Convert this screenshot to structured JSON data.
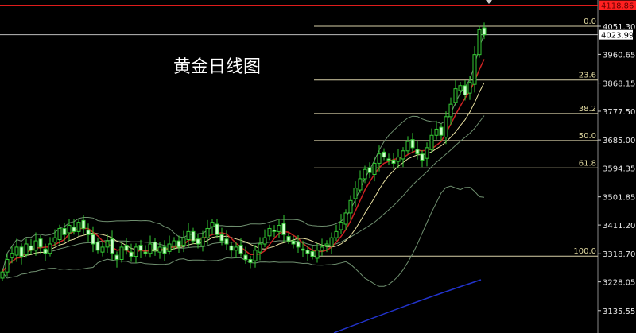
{
  "title": "黄金日线图",
  "chart_data": {
    "type": "candlestick",
    "title": "黄金日线图",
    "y_ticks": [
      "4051.30",
      "3960.65",
      "3868.15",
      "3777.50",
      "3685.00",
      "3594.35",
      "3501.85",
      "3411.20",
      "3318.70",
      "3228.05",
      "3135.55"
    ],
    "ylim": [
      3100,
      4130
    ],
    "current_price": "4023.99",
    "alert_price": "4118.86",
    "fibonacci": [
      {
        "label": "0.0",
        "price": 4051.3
      },
      {
        "label": "23.6",
        "price": 3878
      },
      {
        "label": "38.2",
        "price": 3770
      },
      {
        "label": "50.0",
        "price": 3683
      },
      {
        "label": "61.8",
        "price": 3595
      },
      {
        "label": "100.0",
        "price": 3311
      }
    ],
    "closes": [
      3260,
      3300,
      3320,
      3340,
      3310,
      3350,
      3330,
      3360,
      3340,
      3320,
      3350,
      3370,
      3400,
      3380,
      3410,
      3390,
      3420,
      3400,
      3380,
      3350,
      3330,
      3340,
      3360,
      3320,
      3300,
      3340,
      3330,
      3310,
      3340,
      3330,
      3320,
      3350,
      3330,
      3340,
      3320,
      3350,
      3360,
      3340,
      3370,
      3390,
      3360,
      3350,
      3370,
      3400,
      3420,
      3380,
      3360,
      3350,
      3330,
      3340,
      3320,
      3300,
      3290,
      3330,
      3350,
      3370,
      3400,
      3390,
      3410,
      3380,
      3360,
      3350,
      3340,
      3330,
      3320,
      3310,
      3330,
      3340,
      3350,
      3370,
      3390,
      3420,
      3450,
      3490,
      3530,
      3560,
      3590,
      3580,
      3610,
      3640,
      3630,
      3620,
      3610,
      3630,
      3650,
      3680,
      3660,
      3640,
      3620,
      3660,
      3700,
      3720,
      3700,
      3760,
      3800,
      3850,
      3860,
      3830,
      3870,
      3960,
      4040,
      4024
    ],
    "colors": {
      "up": "#33cc33",
      "down_body": "#ccffcc",
      "ma_fast": "#cc2222",
      "ma_slow": "#e8e0a0",
      "bands": "#6f8f6f",
      "fib": "#d8d0a8",
      "alert": "#ff2020",
      "long_ma": "#2233cc"
    }
  }
}
